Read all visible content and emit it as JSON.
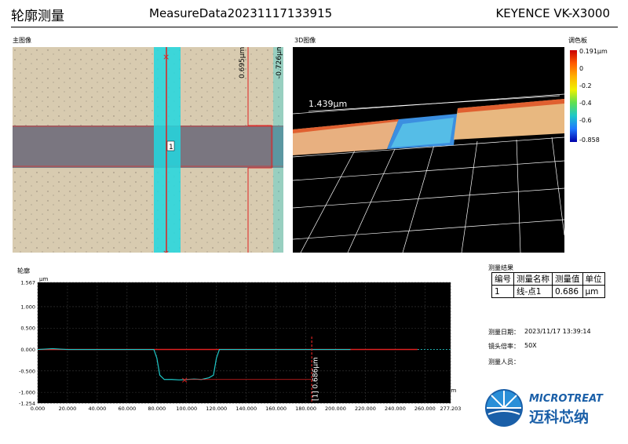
{
  "header": {
    "title": "轮廓测量",
    "file_name": "MeasureData20231117133915",
    "device": "KEYENCE VK-X3000"
  },
  "main_image": {
    "label": "主图像",
    "marker_label": "1",
    "right_label_1": "0.695μm",
    "right_label_2": "-0.726μm"
  },
  "view_3d": {
    "label": "3D图像",
    "height_label": "1.439μm"
  },
  "palette": {
    "title": "调色板",
    "ticks": [
      "0.191μm",
      "0",
      "-0.2",
      "-0.4",
      "-0.6",
      "-0.858"
    ]
  },
  "profile": {
    "label": "轮廓",
    "measurement_label": "[1] 0.686μm",
    "unit": "μm"
  },
  "chart_data": {
    "type": "line",
    "xlabel": "μm",
    "ylabel": "μm",
    "xlim": [
      0,
      277.203
    ],
    "ylim": [
      -1.254,
      1.567
    ],
    "x_ticks": [
      "0.000",
      "20.000",
      "40.000",
      "60.000",
      "80.000",
      "100.000",
      "120.000",
      "140.000",
      "160.000",
      "180.000",
      "200.000",
      "220.000",
      "240.000",
      "260.000",
      "277.203"
    ],
    "y_ticks": [
      "1.567",
      "1.000",
      "0.500",
      "0.000",
      "-0.500",
      "-1.000",
      "-1.254"
    ],
    "series": [
      {
        "x": [
          0,
          10,
          20,
          40,
          60,
          78,
          80,
          82,
          85,
          90,
          95,
          100,
          105,
          110,
          115,
          118,
          120,
          122,
          130,
          150,
          170,
          190,
          210
        ],
        "y": [
          0,
          0.02,
          0,
          0,
          0,
          0,
          -0.2,
          -0.6,
          -0.7,
          -0.7,
          -0.71,
          -0.7,
          -0.69,
          -0.7,
          -0.66,
          -0.6,
          -0.2,
          0,
          0,
          0,
          0,
          0,
          0
        ],
        "color": "#1ec8c8"
      }
    ]
  },
  "results": {
    "label": "测量结果",
    "headers": [
      "编号",
      "测量名称",
      "测量值",
      "单位"
    ],
    "rows": [
      [
        "1",
        "线-点1",
        "0.686",
        "μm"
      ]
    ]
  },
  "info": {
    "date_label": "测量日期：",
    "date_value": "2023/11/17 13:39:14",
    "lens_label": "镜头倍率：",
    "lens_value": "50X",
    "operator_label": "测量人员：",
    "operator_value": ""
  },
  "logo": {
    "en": "MICROTREAT",
    "cn": "迈科芯纳"
  },
  "colors": {
    "accent_cyan": "#1ec8c8",
    "red": "#e02020",
    "logo_blue": "#1a5fa8"
  }
}
